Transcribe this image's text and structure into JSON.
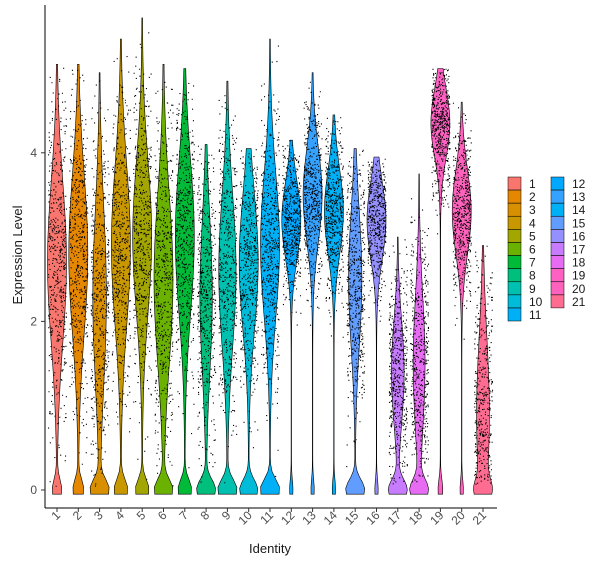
{
  "chart_data": {
    "type": "violin",
    "xlabel": "Identity",
    "ylabel": "Expression Level",
    "ylim": [
      -0.3,
      5.85
    ],
    "yticks": [
      "0",
      "2",
      "4"
    ],
    "categories": [
      "1",
      "2",
      "3",
      "4",
      "5",
      "6",
      "7",
      "8",
      "9",
      "10",
      "11",
      "12",
      "13",
      "14",
      "15",
      "16",
      "17",
      "18",
      "19",
      "20",
      "21"
    ],
    "colors": [
      "#F8766D",
      "#EA8331",
      "#D89000",
      "#C09B00",
      "#A3A500",
      "#7CAE00",
      "#39B600",
      "#00BB4E",
      "#00BF7D",
      "#00C1A3",
      "#00BFC4",
      "#00BAE0",
      "#00B0F6",
      "#35A2FF",
      "#9590FF",
      "#C77CFF",
      "#E76BF3",
      "#FA62DB",
      "#FF62BC",
      "#FF6A98",
      "#F8766D"
    ],
    "fill_colors": [
      "#F8766D",
      "#E58700",
      "#D89000",
      "#C99800",
      "#A3A500",
      "#6BB100",
      "#00BA38",
      "#00BF7D",
      "#00C0AF",
      "#00BCD8",
      "#00B0F6",
      "#00A9FF",
      "#35A2FF",
      "#00B0F6",
      "#619CFF",
      "#9590FF",
      "#C77CFF",
      "#E76BF3",
      "#FF61C3",
      "#FF62BC",
      "#FF6C91"
    ],
    "series": [
      {
        "name": "1",
        "ymax": 5.05,
        "median": 2.7,
        "spread": 0.95,
        "zero_width": 0.3
      },
      {
        "name": "2",
        "ymax": 5.05,
        "median": 2.8,
        "spread": 0.95,
        "zero_width": 0.35
      },
      {
        "name": "3",
        "ymax": 4.95,
        "median": 2.3,
        "spread": 1.05,
        "zero_width": 0.85
      },
      {
        "name": "4",
        "ymax": 5.35,
        "median": 2.9,
        "spread": 0.95,
        "zero_width": 0.45
      },
      {
        "name": "5",
        "ymax": 5.6,
        "median": 3.0,
        "spread": 0.9,
        "zero_width": 0.45
      },
      {
        "name": "6",
        "ymax": 5.05,
        "median": 2.5,
        "spread": 1.0,
        "zero_width": 0.6
      },
      {
        "name": "7",
        "ymax": 5.0,
        "median": 3.0,
        "spread": 0.9,
        "zero_width": 0.45
      },
      {
        "name": "8",
        "ymax": 4.1,
        "median": 2.3,
        "spread": 0.9,
        "zero_width": 0.95
      },
      {
        "name": "9",
        "ymax": 4.85,
        "median": 2.6,
        "spread": 0.9,
        "zero_width": 0.7
      },
      {
        "name": "10",
        "ymax": 4.05,
        "median": 2.7,
        "spread": 0.8,
        "zero_width": 0.6
      },
      {
        "name": "11",
        "ymax": 5.35,
        "median": 2.9,
        "spread": 0.85,
        "zero_width": 0.65
      },
      {
        "name": "12",
        "ymax": 4.15,
        "median": 3.2,
        "spread": 0.45,
        "zero_width": 0.1
      },
      {
        "name": "13",
        "ymax": 4.95,
        "median": 3.5,
        "spread": 0.55,
        "zero_width": 0.1
      },
      {
        "name": "14",
        "ymax": 4.45,
        "median": 3.3,
        "spread": 0.5,
        "zero_width": 0.1
      },
      {
        "name": "15",
        "ymax": 4.05,
        "median": 2.5,
        "spread": 0.8,
        "zero_width": 0.9
      },
      {
        "name": "16",
        "ymax": 3.95,
        "median": 3.2,
        "spread": 0.45,
        "zero_width": 0.1
      },
      {
        "name": "17",
        "ymax": 3.0,
        "median": 1.4,
        "spread": 0.6,
        "zero_width": 0.9
      },
      {
        "name": "18",
        "ymax": 3.75,
        "median": 1.5,
        "spread": 0.8,
        "zero_width": 0.9
      },
      {
        "name": "19",
        "ymax": 5.0,
        "median": 4.35,
        "spread": 0.4,
        "zero_width": 0.15
      },
      {
        "name": "20",
        "ymax": 4.6,
        "median": 3.3,
        "spread": 0.5,
        "zero_width": 0.1
      },
      {
        "name": "21",
        "ymax": 2.9,
        "median": 0.9,
        "spread": 0.9,
        "zero_width": 0.55
      }
    ],
    "legend_placement": "right",
    "grid": false,
    "points": true
  }
}
